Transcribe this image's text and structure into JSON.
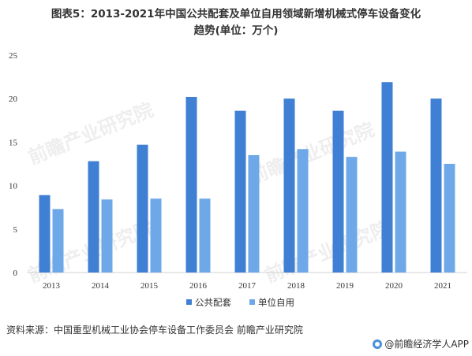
{
  "title_lines": [
    "图表5：2013-2021年中国公共配套及单位自用领域新增机械式停车设备变化",
    "趋势(单位：万个)"
  ],
  "source": "资料来源：中国重型机械工业协会停车设备工作委员会 前瞻产业研究院",
  "brand": "@前瞻经济学人APP",
  "watermark": "前瞻产业研究院",
  "colors": {
    "series1": "#3f7fd4",
    "series2": "#6ea8e8",
    "axis": "#d0d0d0",
    "text": "#333333"
  },
  "chart_data": {
    "type": "bar",
    "categories": [
      "2013",
      "2014",
      "2015",
      "2016",
      "2017",
      "2018",
      "2019",
      "2020",
      "2021"
    ],
    "series": [
      {
        "name": "公共配套",
        "values": [
          8.9,
          12.8,
          14.7,
          20.2,
          18.6,
          20.0,
          18.6,
          21.9,
          20.0
        ]
      },
      {
        "name": "单位自用",
        "values": [
          7.3,
          8.4,
          8.5,
          8.5,
          13.5,
          14.2,
          13.3,
          13.9,
          12.5
        ]
      }
    ],
    "title": "图表5：2013-2021年中国公共配套及单位自用领域新增机械式停车设备变化趋势(单位：万个)",
    "xlabel": "",
    "ylabel": "",
    "ylim": [
      0,
      25
    ],
    "yticks": [
      0,
      5,
      10,
      15,
      20,
      25
    ],
    "grid": false,
    "legend": "bottom-center"
  }
}
